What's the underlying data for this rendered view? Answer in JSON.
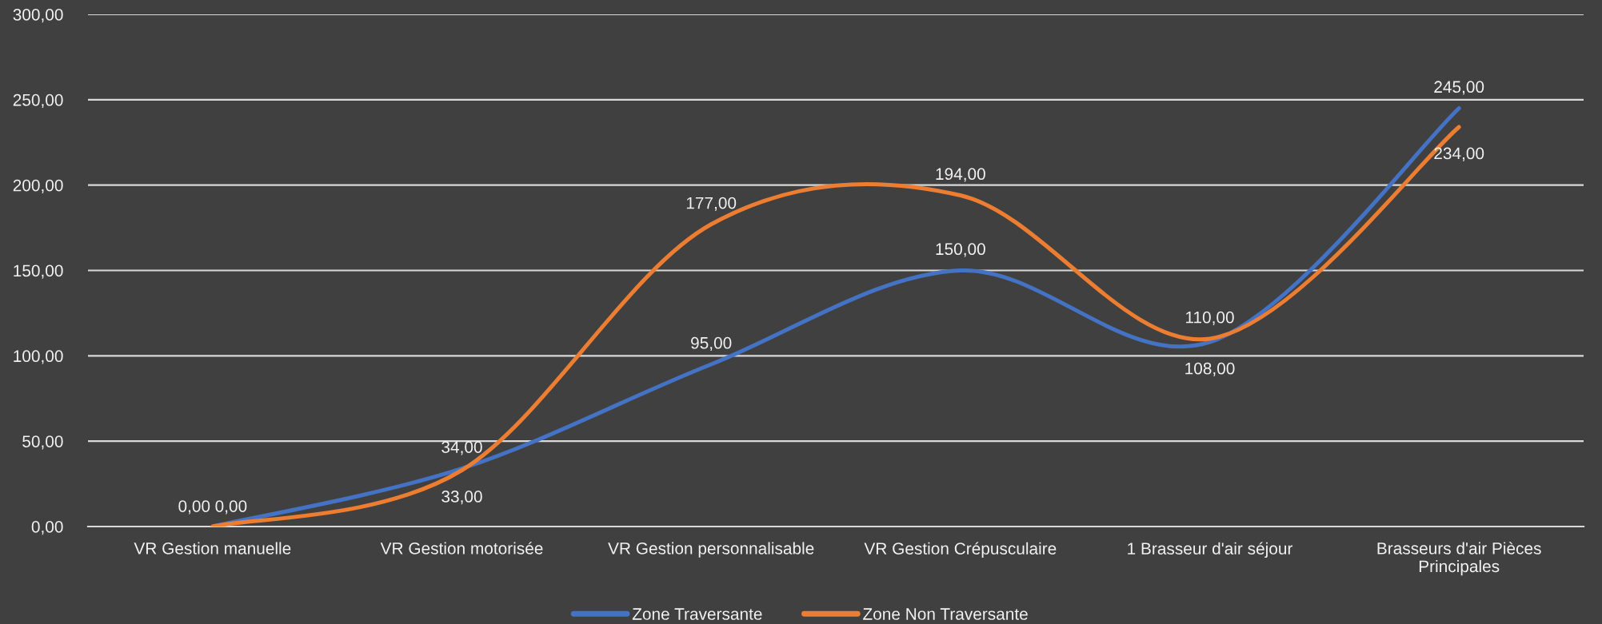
{
  "chart_data": {
    "type": "line",
    "categories": [
      "VR Gestion manuelle",
      "VR Gestion motorisée",
      "VR Gestion personnalisable",
      "VR Gestion Crépusculaire",
      "1 Brasseur d'air séjour",
      "Brasseurs d'air Pièces Principales"
    ],
    "series": [
      {
        "name": "Zone Traversante",
        "color": "#4472c4",
        "values": [
          0,
          34,
          95,
          150,
          108,
          245
        ],
        "value_labels": [
          "0,00",
          "34,00",
          "95,00",
          "150,00",
          "108,00",
          "245,00"
        ]
      },
      {
        "name": "Zone Non Traversante",
        "color": "#ed7d31",
        "values": [
          0,
          33,
          177,
          194,
          110,
          234
        ],
        "value_labels": [
          "0,00",
          "33,00",
          "177,00",
          "194,00",
          "110,00",
          "234,00"
        ]
      }
    ],
    "ylim": [
      0,
      300
    ],
    "yticks": [
      {
        "value": 0,
        "label": "0,00"
      },
      {
        "value": 50,
        "label": "50,00"
      },
      {
        "value": 100,
        "label": "100,00"
      },
      {
        "value": 150,
        "label": "150,00"
      },
      {
        "value": 200,
        "label": "200,00"
      },
      {
        "value": 250,
        "label": "250,00"
      },
      {
        "value": 300,
        "label": "300,00"
      }
    ],
    "grid": "y",
    "legend": "bottom",
    "marker": "none",
    "line_style": "solid"
  }
}
